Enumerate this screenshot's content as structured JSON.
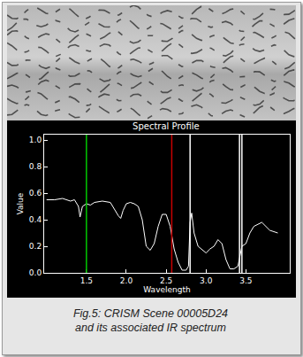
{
  "chart_data": {
    "type": "line",
    "title": "Spectral Profile",
    "x_label": "Wavelength",
    "y_label": "Value",
    "x": [
      1.0,
      1.1,
      1.2,
      1.3,
      1.35,
      1.4,
      1.42,
      1.45,
      1.5,
      1.55,
      1.6,
      1.7,
      1.8,
      1.9,
      1.93,
      1.96,
      2.0,
      2.05,
      2.1,
      2.15,
      2.2,
      2.25,
      2.3,
      2.35,
      2.4,
      2.45,
      2.5,
      2.55,
      2.6,
      2.65,
      2.7,
      2.75,
      2.78,
      2.8,
      2.82,
      2.85,
      2.9,
      3.0,
      3.05,
      3.1,
      3.15,
      3.2,
      3.25,
      3.3,
      3.35,
      3.4,
      3.45,
      3.5,
      3.55,
      3.6,
      3.7,
      3.8,
      3.9
    ],
    "values": [
      0.55,
      0.55,
      0.56,
      0.54,
      0.55,
      0.5,
      0.42,
      0.5,
      0.52,
      0.51,
      0.53,
      0.54,
      0.53,
      0.43,
      0.41,
      0.47,
      0.52,
      0.53,
      0.52,
      0.5,
      0.4,
      0.2,
      0.17,
      0.22,
      0.35,
      0.44,
      0.44,
      0.35,
      0.18,
      0.08,
      0.02,
      0.02,
      0.05,
      0.38,
      0.45,
      0.3,
      0.2,
      0.15,
      0.18,
      0.2,
      0.25,
      0.22,
      0.1,
      0.03,
      0.03,
      0.05,
      0.2,
      0.22,
      0.3,
      0.35,
      0.38,
      0.32,
      0.3
    ],
    "color": "#ffffff",
    "xlim": [
      0.97,
      4.05
    ],
    "xticks": [
      {
        "value": 1.5,
        "label": "1.5"
      },
      {
        "value": 2.0,
        "label": "2.0"
      },
      {
        "value": 2.5,
        "label": "2.5"
      },
      {
        "value": 3.0,
        "label": "3.0"
      },
      {
        "value": 3.5,
        "label": "3.5"
      }
    ],
    "ylim": [
      0,
      1.04
    ],
    "yticks": [
      {
        "value": 0,
        "label": "0.0"
      },
      {
        "value": 0.2,
        "label": "0.2"
      },
      {
        "value": 0.4,
        "label": "0.4"
      },
      {
        "value": 0.6,
        "label": "0.6"
      },
      {
        "value": 0.8,
        "label": "0.8"
      },
      {
        "value": 1.0,
        "label": "1.0"
      }
    ],
    "vertical_lines": [
      {
        "x": 1.5,
        "color": "#00c800"
      },
      {
        "x": 2.57,
        "color": "#c80000"
      },
      {
        "x": 2.8,
        "color": "#ffffff"
      },
      {
        "x": 3.42,
        "color": "#ffffff"
      },
      {
        "x": 3.45,
        "color": "#ffffff"
      }
    ],
    "grid": false
  },
  "caption": [
    "Fig.5: CRISM Scene 00005D24",
    "and its associated IR spectrum"
  ]
}
